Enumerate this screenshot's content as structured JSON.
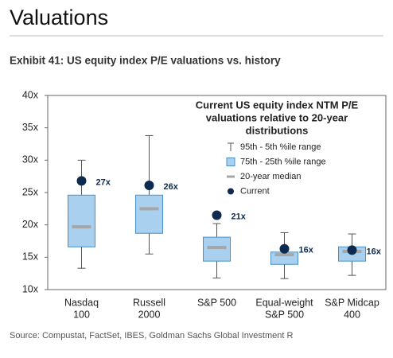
{
  "header": {
    "title": "Valuations"
  },
  "chart_data": {
    "type": "box",
    "title": "Exhibit 41: US equity index P/E valuations vs. history",
    "legend_title": [
      "Current US equity index NTM P/E",
      "valuations relative to 20-year",
      "distributions"
    ],
    "categories": [
      [
        "Nasdaq",
        "100"
      ],
      [
        "Russell",
        "2000"
      ],
      [
        "S&P 500"
      ],
      [
        "Equal-weight",
        "S&P 500"
      ],
      [
        "S&P Midcap",
        "400"
      ]
    ],
    "series": [
      {
        "name": "95th - 5th %ile range",
        "color": "#555555",
        "high": [
          30.0,
          33.8,
          20.2,
          18.8,
          18.6
        ],
        "low": [
          13.3,
          15.5,
          11.8,
          11.7,
          12.2
        ]
      },
      {
        "name": "75th - 25th %ile range",
        "color": "#a9d0ef",
        "high": [
          24.6,
          24.6,
          18.1,
          15.8,
          16.6
        ],
        "low": [
          16.6,
          18.7,
          14.4,
          13.9,
          14.4
        ]
      },
      {
        "name": "20-year median",
        "color": "#a6a6a6",
        "values": [
          19.7,
          22.5,
          16.5,
          15.4,
          15.9
        ]
      },
      {
        "name": "Current",
        "color": "#0d2a4f",
        "values": [
          26.8,
          26.1,
          21.5,
          16.3,
          16.1
        ],
        "value_labels": [
          "27x",
          "26x",
          "21x",
          "16x",
          "16x"
        ]
      }
    ],
    "ylim": [
      10,
      40
    ],
    "yticks": [
      {
        "value": 10,
        "label": "10x"
      },
      {
        "value": 15,
        "label": "15x"
      },
      {
        "value": 20,
        "label": "20x"
      },
      {
        "value": 25,
        "label": "25x"
      },
      {
        "value": 30,
        "label": "30x"
      },
      {
        "value": 35,
        "label": "35x"
      },
      {
        "value": 40,
        "label": "40x"
      }
    ],
    "legend": "upper right"
  },
  "source": "Source: Compustat, FactSet, IBES, Goldman Sachs Global Investment R"
}
